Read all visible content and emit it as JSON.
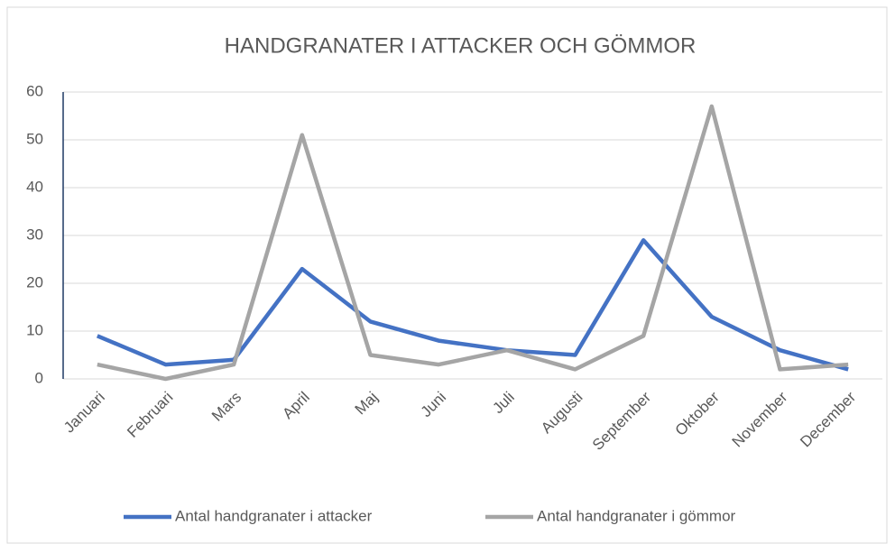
{
  "chart_data": {
    "type": "line",
    "title": "HANDGRANATER I ATTACKER OCH GÖMMOR",
    "categories": [
      "Januari",
      "Februari",
      "Mars",
      "April",
      "Maj",
      "Juni",
      "Juli",
      "Augusti",
      "September",
      "Oktober",
      "November",
      "December"
    ],
    "series": [
      {
        "name": "Antal handgranater i attacker",
        "color": "#4472c4",
        "values": [
          9,
          3,
          4,
          23,
          12,
          8,
          6,
          5,
          29,
          13,
          6,
          2
        ]
      },
      {
        "name": "Antal handgranater i gömmor",
        "color": "#a5a5a5",
        "values": [
          3,
          0,
          3,
          51,
          5,
          3,
          6,
          2,
          9,
          57,
          2,
          3
        ]
      }
    ],
    "ylim": [
      0,
      60
    ],
    "yticks": [
      0,
      10,
      20,
      30,
      40,
      50,
      60
    ],
    "grid": true,
    "legend": "bottom"
  }
}
